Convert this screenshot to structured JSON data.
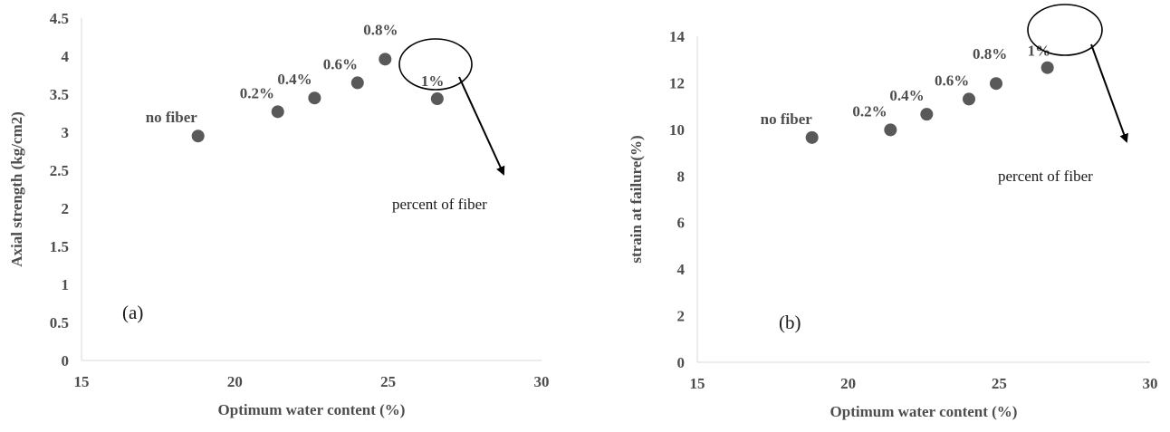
{
  "chart_data": [
    {
      "type": "scatter",
      "panel_label": "(a)",
      "xlabel": "Optimum water content (%)",
      "ylabel": "Axial strength  (kg/cm2)",
      "xlim": [
        15,
        30
      ],
      "ylim": [
        0,
        4.5
      ],
      "xticks": [
        "15",
        "20",
        "25",
        "30"
      ],
      "yticks": [
        "0",
        "0.5",
        "1",
        "1.5",
        "2",
        "2.5",
        "3",
        "3.5",
        "4",
        "4.5"
      ],
      "points": [
        {
          "x": 18.8,
          "y": 2.95,
          "label": "no fiber"
        },
        {
          "x": 21.4,
          "y": 3.27,
          "label": "0.2%"
        },
        {
          "x": 22.6,
          "y": 3.45,
          "label": "0.4%"
        },
        {
          "x": 24.0,
          "y": 3.65,
          "label": "0.6%"
        },
        {
          "x": 24.9,
          "y": 3.96,
          "label": "0.8%"
        },
        {
          "x": 26.6,
          "y": 3.44,
          "label": "1%"
        }
      ],
      "annotation": "percent of fiber",
      "marker_color": "#595959",
      "grid": false
    },
    {
      "type": "scatter",
      "panel_label": "(b)",
      "xlabel": "Optimum water content (%)",
      "ylabel": "strain at failure(%)",
      "xlim": [
        15,
        30
      ],
      "ylim": [
        0,
        14
      ],
      "xticks": [
        "15",
        "20",
        "25",
        "30"
      ],
      "yticks": [
        "0",
        "2",
        "4",
        "6",
        "8",
        "10",
        "12",
        "14"
      ],
      "points": [
        {
          "x": 18.8,
          "y": 9.65,
          "label": "no fiber"
        },
        {
          "x": 21.4,
          "y": 9.98,
          "label": "0.2%"
        },
        {
          "x": 22.6,
          "y": 10.65,
          "label": "0.4%"
        },
        {
          "x": 24.0,
          "y": 11.3,
          "label": "0.6%"
        },
        {
          "x": 24.9,
          "y": 11.97,
          "label": "0.8%"
        },
        {
          "x": 26.6,
          "y": 12.65,
          "label": "1%"
        }
      ],
      "annotation": "percent of fiber",
      "marker_color": "#595959",
      "grid": false
    }
  ]
}
